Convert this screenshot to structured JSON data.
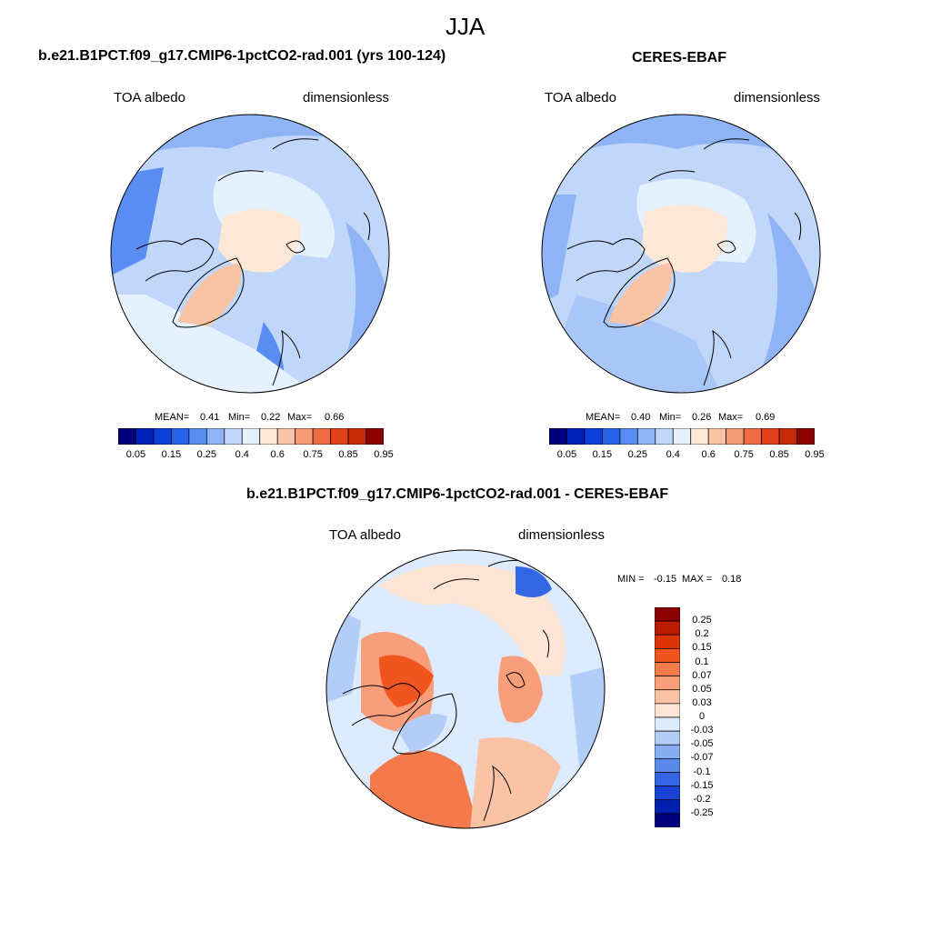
{
  "chart_data": [
    {
      "type": "heatmap",
      "title": "b.e21.B1PCT.f09_g17.CMIP6-1pctCO2-rad.001 (yrs 100-124)",
      "left_label": "TOA albedo",
      "right_label": "dimensionless",
      "stats": {
        "mean": "0.41",
        "min": "0.22",
        "max": "0.66"
      },
      "colorbar": {
        "ticks": [
          "0.05",
          "0.15",
          "0.25",
          "0.4",
          "0.6",
          "0.75",
          "0.85",
          "0.95"
        ]
      }
    },
    {
      "type": "heatmap",
      "title": "CERES-EBAF",
      "left_label": "TOA albedo",
      "right_label": "dimensionless",
      "stats": {
        "mean": "0.40",
        "min": "0.26",
        "max": "0.69"
      },
      "colorbar": {
        "ticks": [
          "0.05",
          "0.15",
          "0.25",
          "0.4",
          "0.6",
          "0.75",
          "0.85",
          "0.95"
        ]
      }
    },
    {
      "type": "heatmap",
      "title": "b.e21.B1PCT.f09_g17.CMIP6-1pctCO2-rad.001 - CERES-EBAF",
      "left_label": "TOA albedo",
      "right_label": "dimensionless",
      "stats": {
        "min": "-0.15",
        "max": "0.18"
      },
      "colorbar": {
        "ticks": [
          "0.25",
          "0.2",
          "0.15",
          "0.1",
          "0.07",
          "0.05",
          "0.03",
          "0",
          "-0.03",
          "-0.05",
          "-0.07",
          "-0.1",
          "-0.15",
          "-0.2",
          "-0.25"
        ]
      }
    }
  ],
  "season": "JJA",
  "labels": {
    "mean_label": "MEAN=",
    "min_label": "Min=",
    "max_label": "Max=",
    "diff_min_label": "MIN =",
    "diff_max_label": "MAX ="
  },
  "colors": {
    "abs_scale": [
      "#00007f",
      "#0020b8",
      "#0d3fd9",
      "#2a62ea",
      "#5a8df2",
      "#8fb4f6",
      "#c1d7fa",
      "#e6f1fe",
      "#fde7d6",
      "#f9c4a6",
      "#f59c77",
      "#ef6c44",
      "#e3401c",
      "#c62a08",
      "#8b0000"
    ],
    "diff_scale": [
      "#8b0000",
      "#b91a00",
      "#dc3405",
      "#f0551f",
      "#f57a4b",
      "#f89e7a",
      "#fbc3a6",
      "#fde5d5",
      "#dcebfd",
      "#b2cdf7",
      "#86aef1",
      "#5a8ae9",
      "#3466e3",
      "#1a43d6",
      "#0021b0",
      "#00007f"
    ]
  }
}
